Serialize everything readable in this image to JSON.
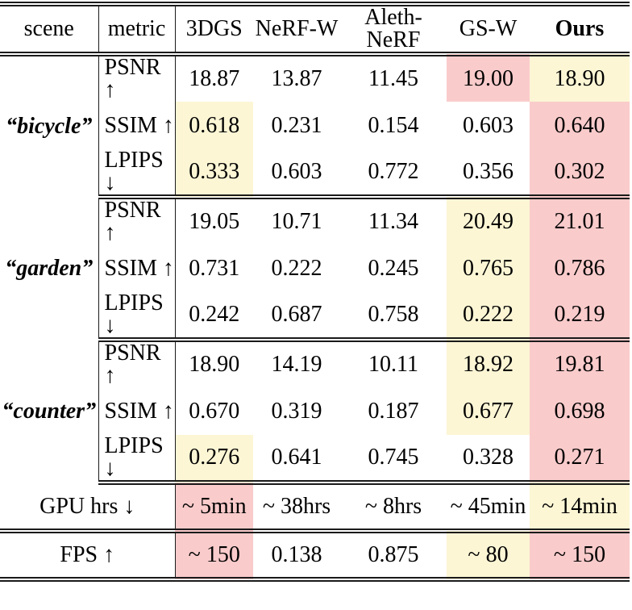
{
  "header": {
    "scene_label": "scene",
    "metric_label": "metric",
    "methods": [
      "3DGS",
      "NeRF-W",
      "Aleth-NeRF",
      "GS-W",
      "Ours"
    ]
  },
  "colors": {
    "best": "#FACBCB",
    "second": "#FCF6D5"
  },
  "sections": [
    {
      "scene": "“bicycle”",
      "rows": [
        {
          "metric": "PSNR ↑",
          "values": [
            "18.87",
            "13.87",
            "11.45",
            "19.00",
            "18.90"
          ],
          "highlights": [
            "",
            "",
            "",
            "best",
            "second"
          ]
        },
        {
          "metric": "SSIM ↑",
          "values": [
            "0.618",
            "0.231",
            "0.154",
            "0.603",
            "0.640"
          ],
          "highlights": [
            "second",
            "",
            "",
            "",
            "best"
          ]
        },
        {
          "metric": "LPIPS ↓",
          "values": [
            "0.333",
            "0.603",
            "0.772",
            "0.356",
            "0.302"
          ],
          "highlights": [
            "second",
            "",
            "",
            "",
            "best"
          ]
        }
      ]
    },
    {
      "scene": "“garden”",
      "rows": [
        {
          "metric": "PSNR ↑",
          "values": [
            "19.05",
            "10.71",
            "11.34",
            "20.49",
            "21.01"
          ],
          "highlights": [
            "",
            "",
            "",
            "second",
            "best"
          ]
        },
        {
          "metric": "SSIM ↑",
          "values": [
            "0.731",
            "0.222",
            "0.245",
            "0.765",
            "0.786"
          ],
          "highlights": [
            "",
            "",
            "",
            "second",
            "best"
          ]
        },
        {
          "metric": "LPIPS ↓",
          "values": [
            "0.242",
            "0.687",
            "0.758",
            "0.222",
            "0.219"
          ],
          "highlights": [
            "",
            "",
            "",
            "second",
            "best"
          ]
        }
      ]
    },
    {
      "scene": "“counter”",
      "rows": [
        {
          "metric": "PSNR ↑",
          "values": [
            "18.90",
            "14.19",
            "10.11",
            "18.92",
            "19.81"
          ],
          "highlights": [
            "",
            "",
            "",
            "second",
            "best"
          ]
        },
        {
          "metric": "SSIM ↑",
          "values": [
            "0.670",
            "0.319",
            "0.187",
            "0.677",
            "0.698"
          ],
          "highlights": [
            "",
            "",
            "",
            "second",
            "best"
          ]
        },
        {
          "metric": "LPIPS ↓",
          "values": [
            "0.276",
            "0.641",
            "0.745",
            "0.328",
            "0.271"
          ],
          "highlights": [
            "second",
            "",
            "",
            "",
            "best"
          ]
        }
      ]
    }
  ],
  "footer_rows": [
    {
      "label": "GPU hrs ↓",
      "values": [
        "~ 5min",
        "~ 38hrs",
        "~ 8hrs",
        "~ 45min",
        "~ 14min"
      ],
      "highlights": [
        "best",
        "",
        "",
        "",
        "second"
      ]
    },
    {
      "label": "FPS ↑",
      "values": [
        "~ 150",
        "0.138",
        "0.875",
        "~ 80",
        "~ 150"
      ],
      "highlights": [
        "best",
        "",
        "",
        "second",
        "best"
      ]
    }
  ]
}
